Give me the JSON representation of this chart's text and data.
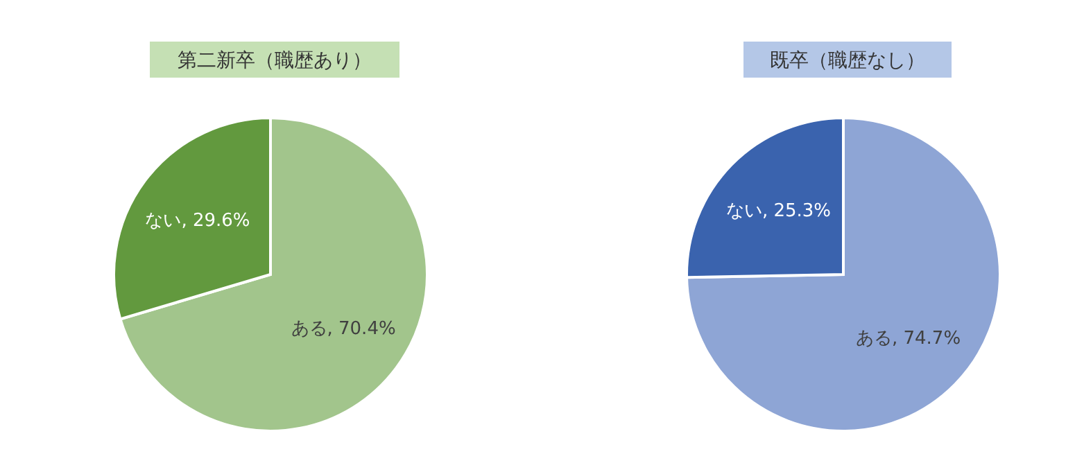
{
  "chart_data": [
    {
      "type": "pie",
      "title": "第二新卒（職歴あり）",
      "categories": [
        "ある",
        "ない"
      ],
      "values": [
        70.4,
        29.6
      ],
      "colors": [
        "#a2c58c",
        "#62993e"
      ],
      "value_labels": [
        "70.4%",
        "29.6%"
      ],
      "legend": false
    },
    {
      "type": "pie",
      "title": "既卒（職歴なし）",
      "categories": [
        "ある",
        "ない"
      ],
      "values": [
        74.7,
        25.3
      ],
      "colors": [
        "#8ea5d5",
        "#3a63ae"
      ],
      "value_labels": [
        "74.7%",
        "25.3%"
      ],
      "legend": false
    }
  ]
}
